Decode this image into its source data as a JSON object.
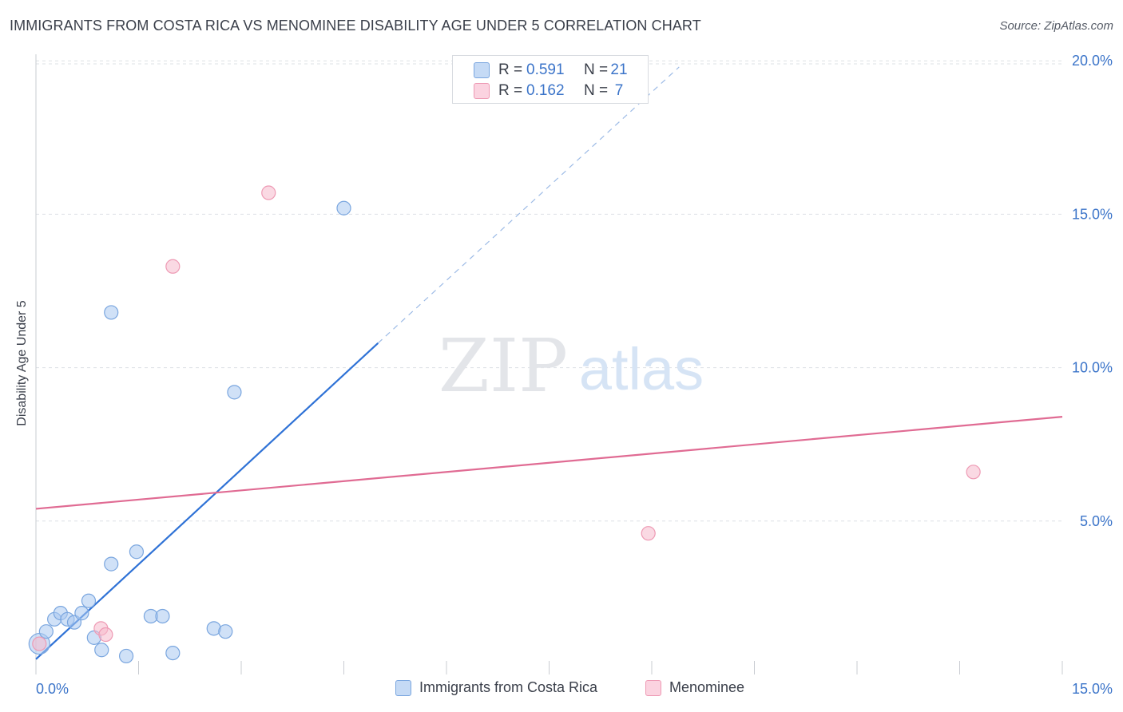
{
  "title": "IMMIGRANTS FROM COSTA RICA VS MENOMINEE DISABILITY AGE UNDER 5 CORRELATION CHART",
  "source": "Source: ZipAtlas.com",
  "watermark": {
    "zip": "ZIP",
    "atlas": "atlas"
  },
  "legend_top": {
    "rows": [
      {
        "r_label": "R =",
        "r_value": "0.591",
        "n_label": "N =",
        "n_value": "21"
      },
      {
        "r_label": "R =",
        "r_value": "0.162",
        "n_label": "N =",
        "n_value": "7"
      }
    ]
  },
  "legend_bottom": [
    "Immigrants from Costa Rica",
    "Menominee"
  ],
  "colors": {
    "blue_fill": "#a9c8f0",
    "blue_stroke": "#7aa6df",
    "blue_line": "#2f72d6",
    "pink_fill": "#f6b9cc",
    "pink_stroke": "#ee9ab4",
    "pink_line": "#e06b93",
    "tick_text": "#3b74c9",
    "grid": "#dde0e6"
  },
  "chart_data": {
    "type": "scatter",
    "title": "IMMIGRANTS FROM COSTA RICA VS MENOMINEE DISABILITY AGE UNDER 5 CORRELATION CHART",
    "xlabel": "",
    "ylabel": "Disability Age Under 5",
    "xlim": [
      0,
      15
    ],
    "ylim": [
      0,
      20.5
    ],
    "x_tick_labels": [
      "0.0%",
      "15.0%"
    ],
    "y_ticks": [
      5,
      10,
      15,
      20
    ],
    "y_tick_labels": [
      "5.0%",
      "10.0%",
      "15.0%",
      "20.0%"
    ],
    "series": [
      {
        "name": "Immigrants from Costa Rica",
        "color": "blue",
        "r": 0.591,
        "n": 21,
        "points": [
          {
            "x": 0.05,
            "y": 1.0,
            "big": true
          },
          {
            "x": 0.15,
            "y": 1.4
          },
          {
            "x": 0.27,
            "y": 1.8
          },
          {
            "x": 0.36,
            "y": 2.0
          },
          {
            "x": 0.46,
            "y": 1.8
          },
          {
            "x": 0.56,
            "y": 1.7
          },
          {
            "x": 0.67,
            "y": 2.0
          },
          {
            "x": 0.77,
            "y": 2.4
          },
          {
            "x": 0.85,
            "y": 1.2
          },
          {
            "x": 0.96,
            "y": 0.8
          },
          {
            "x": 1.1,
            "y": 11.8
          },
          {
            "x": 1.1,
            "y": 3.6
          },
          {
            "x": 1.32,
            "y": 0.6
          },
          {
            "x": 1.47,
            "y": 4.0
          },
          {
            "x": 1.68,
            "y": 1.9
          },
          {
            "x": 1.85,
            "y": 1.9
          },
          {
            "x": 2.0,
            "y": 0.7
          },
          {
            "x": 2.6,
            "y": 1.5
          },
          {
            "x": 2.77,
            "y": 1.4
          },
          {
            "x": 2.9,
            "y": 9.2
          },
          {
            "x": 4.5,
            "y": 15.2
          }
        ],
        "trend": {
          "x0": 0.0,
          "y0": 0.5,
          "x1": 5.0,
          "y1": 10.8,
          "dash_x1": 9.4,
          "dash_y1": 19.8
        }
      },
      {
        "name": "Menominee",
        "color": "pink",
        "r": 0.162,
        "n": 7,
        "points": [
          {
            "x": 0.05,
            "y": 1.0
          },
          {
            "x": 0.95,
            "y": 1.5
          },
          {
            "x": 1.02,
            "y": 1.3
          },
          {
            "x": 2.0,
            "y": 13.3
          },
          {
            "x": 3.4,
            "y": 15.7
          },
          {
            "x": 8.95,
            "y": 4.6
          },
          {
            "x": 13.7,
            "y": 6.6
          }
        ],
        "trend": {
          "x0": 0.0,
          "y0": 5.4,
          "x1": 15.0,
          "y1": 8.4
        }
      }
    ]
  }
}
